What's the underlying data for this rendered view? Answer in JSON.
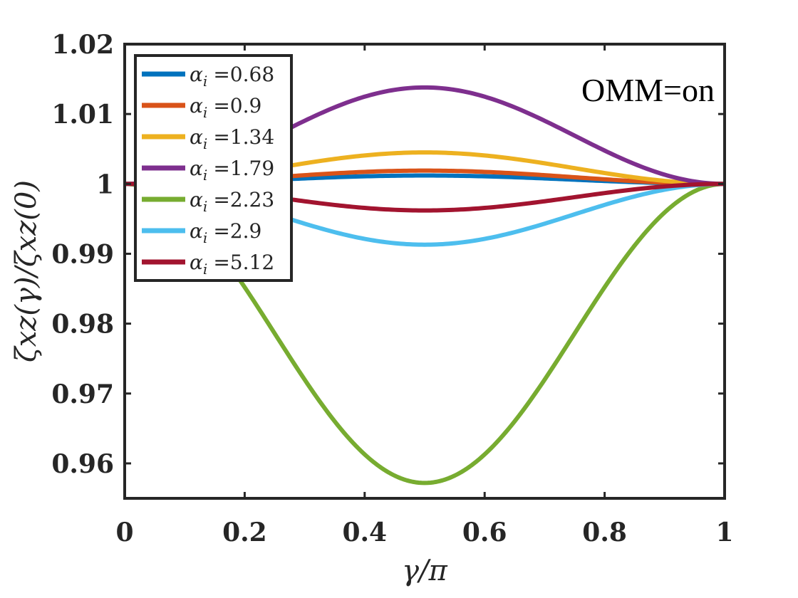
{
  "chart_data": {
    "type": "line",
    "title": "",
    "xlabel": "γ/π",
    "ylabel": "ζxz(γ)/ζxz(0)",
    "xlim": [
      0,
      1
    ],
    "ylim": [
      0.955,
      1.02
    ],
    "xticks": [
      0,
      0.2,
      0.4,
      0.6,
      0.8,
      1
    ],
    "xtick_labels": [
      "0",
      "0.2",
      "0.4",
      "0.6",
      "0.8",
      "1"
    ],
    "yticks": [
      0.96,
      0.97,
      0.98,
      0.99,
      1.0,
      1.01,
      1.02
    ],
    "ytick_labels": [
      "0.96",
      "0.97",
      "0.98",
      "0.99",
      "1",
      "1.01",
      "1.02"
    ],
    "grid": false,
    "legend_position": "top-left",
    "annotation": "OMM=on",
    "curve_shape": "y = 1 + A * sin(pi*x)^2",
    "series": [
      {
        "name": "α_i =0.68",
        "symbol": "α",
        "subscript": "i",
        "value_text": "=0.68",
        "color": "#0072BD",
        "peak": 1.0012
      },
      {
        "name": "α_i =0.9",
        "symbol": "α",
        "subscript": "i",
        "value_text": "=0.9",
        "color": "#D95319",
        "peak": 1.0019
      },
      {
        "name": "α_i =1.34",
        "symbol": "α",
        "subscript": "i",
        "value_text": "=1.34",
        "color": "#EDB120",
        "peak": 1.0045
      },
      {
        "name": "α_i =1.79",
        "symbol": "α",
        "subscript": "i",
        "value_text": "=1.79",
        "color": "#7E2F8E",
        "peak": 1.0138
      },
      {
        "name": "α_i =2.23",
        "symbol": "α",
        "subscript": "i",
        "value_text": "=2.23",
        "color": "#77AC30",
        "peak": 0.9572
      },
      {
        "name": "α_i =2.9",
        "symbol": "α",
        "subscript": "i",
        "value_text": "=2.9",
        "color": "#4DBEEE",
        "peak": 0.9913
      },
      {
        "name": "α_i =5.12",
        "symbol": "α",
        "subscript": "i",
        "value_text": "=5.12",
        "color": "#A2142F",
        "peak": 0.9962
      }
    ]
  }
}
